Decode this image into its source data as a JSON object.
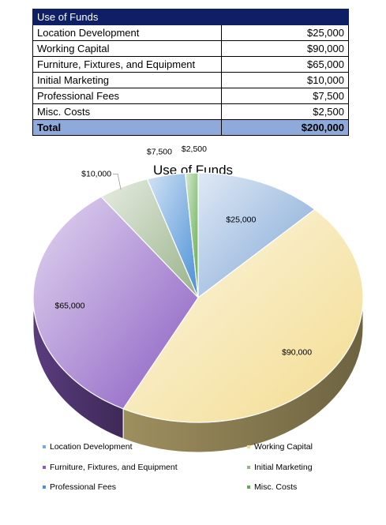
{
  "table": {
    "header": "Use of Funds",
    "rows": [
      {
        "label": "Location Development",
        "amount": "$25,000"
      },
      {
        "label": "Working Capital",
        "amount": "$90,000"
      },
      {
        "label": "Furniture, Fixtures, and Equipment",
        "amount": "$65,000"
      },
      {
        "label": "Initial Marketing",
        "amount": "$10,000"
      },
      {
        "label": "Professional Fees",
        "amount": "$7,500"
      },
      {
        "label": "Misc. Costs",
        "amount": "$2,500"
      }
    ],
    "total_label": "Total",
    "total_amount": "$200,000"
  },
  "chart_data": {
    "type": "pie",
    "title": "Use of Funds",
    "legend_position": "bottom",
    "categories": [
      "Location Development",
      "Working Capital",
      "Furniture, Fixtures, and Equipment",
      "Initial Marketing",
      "Professional Fees",
      "Misc. Costs"
    ],
    "values": [
      25000,
      90000,
      65000,
      10000,
      7500,
      2500
    ],
    "data_labels": [
      "$25,000",
      "$90,000",
      "$65,000",
      "$10,000",
      "$7,500",
      "$2,500"
    ],
    "colors": [
      "#7fa6d6",
      "#f3dc90",
      "#8a5cc2",
      "#9ab38a",
      "#4a8fd6",
      "#5faa4a"
    ]
  }
}
